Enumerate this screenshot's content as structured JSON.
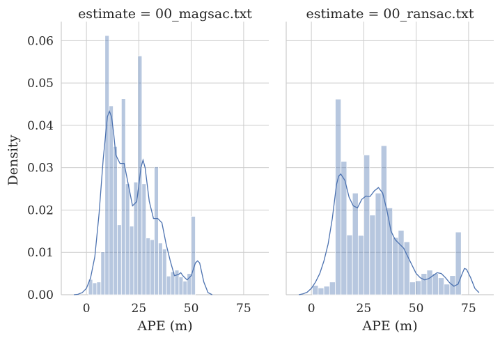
{
  "chart_data": [
    {
      "type": "histogram+kde",
      "title": "estimate = 00_magsac.txt",
      "xlabel": "APE (m)",
      "ylabel": "Density",
      "xlim": [
        -12,
        87
      ],
      "ylim": [
        0,
        0.0645
      ],
      "xticks": [
        0,
        25,
        50,
        75
      ],
      "yticks": [
        0.0,
        0.01,
        0.02,
        0.03,
        0.04,
        0.05,
        0.06
      ],
      "ytick_labels": [
        "0.00",
        "0.01",
        "0.02",
        "0.03",
        "0.04",
        "0.05",
        "0.06"
      ],
      "grid": true,
      "bins": {
        "start": 1.0,
        "width": 1.96,
        "density": [
          0.0036,
          0.0028,
          0.003,
          0.0101,
          0.0612,
          0.0446,
          0.035,
          0.0165,
          0.0463,
          0.0262,
          0.0162,
          0.0266,
          0.0564,
          0.0262,
          0.0134,
          0.013,
          0.0302,
          0.0122,
          0.0108,
          0.0044,
          0.0054,
          0.0058,
          0.0042,
          0.0032,
          0.005,
          0.0185,
          0.0
        ]
      },
      "kde": {
        "x": [
          -6,
          -4,
          -2,
          0,
          2,
          4,
          6,
          8,
          10,
          11,
          12,
          13,
          14,
          16,
          18,
          20,
          22,
          24,
          26,
          27,
          28,
          30,
          32,
          34,
          36,
          38,
          40,
          42,
          44,
          45,
          46,
          48,
          50,
          52,
          53,
          54,
          56,
          58,
          60
        ],
        "y": [
          0.0,
          0.0001,
          0.0005,
          0.0015,
          0.004,
          0.009,
          0.019,
          0.032,
          0.042,
          0.0433,
          0.042,
          0.038,
          0.033,
          0.031,
          0.031,
          0.026,
          0.021,
          0.022,
          0.03,
          0.0318,
          0.03,
          0.022,
          0.018,
          0.018,
          0.017,
          0.012,
          0.008,
          0.0045,
          0.0048,
          0.0052,
          0.0045,
          0.0035,
          0.0045,
          0.0075,
          0.008,
          0.0075,
          0.003,
          0.0005,
          0.0
        ]
      }
    },
    {
      "type": "histogram+kde",
      "title": "estimate = 00_ransac.txt",
      "xlabel": "APE (m)",
      "ylabel": "",
      "xlim": [
        -12,
        87
      ],
      "ylim": [
        0,
        0.0645
      ],
      "xticks": [
        0,
        25,
        50,
        75
      ],
      "yticks": [
        0.0,
        0.01,
        0.02,
        0.03,
        0.04,
        0.05,
        0.06
      ],
      "ytick_labels": [],
      "grid": true,
      "bins": {
        "start": 0.5,
        "width": 2.73,
        "density": [
          0.0022,
          0.0016,
          0.002,
          0.003,
          0.0462,
          0.0315,
          0.0141,
          0.024,
          0.014,
          0.033,
          0.0188,
          0.024,
          0.0352,
          0.0205,
          0.0135,
          0.0152,
          0.0125,
          0.003,
          0.0033,
          0.005,
          0.0058,
          0.005,
          0.004,
          0.0025,
          0.0045,
          0.0148,
          0.0
        ]
      },
      "kde": {
        "x": [
          -6,
          -4,
          -2,
          0,
          2,
          4,
          6,
          8,
          10,
          12,
          13,
          14,
          16,
          18,
          20,
          22,
          24,
          26,
          28,
          30,
          32,
          34,
          36,
          38,
          40,
          42,
          44,
          46,
          48,
          50,
          52,
          54,
          56,
          58,
          60,
          62,
          64,
          66,
          68,
          70,
          72,
          73,
          74,
          76,
          78,
          80
        ],
        "y": [
          0.0,
          0.0002,
          0.0006,
          0.0015,
          0.003,
          0.005,
          0.008,
          0.012,
          0.018,
          0.026,
          0.028,
          0.0285,
          0.027,
          0.023,
          0.021,
          0.0205,
          0.0225,
          0.0233,
          0.0232,
          0.0245,
          0.0253,
          0.024,
          0.02,
          0.015,
          0.013,
          0.012,
          0.011,
          0.009,
          0.007,
          0.005,
          0.004,
          0.0035,
          0.0038,
          0.0045,
          0.0052,
          0.005,
          0.004,
          0.0028,
          0.002,
          0.0025,
          0.005,
          0.0062,
          0.006,
          0.004,
          0.0015,
          0.0005
        ]
      }
    }
  ]
}
